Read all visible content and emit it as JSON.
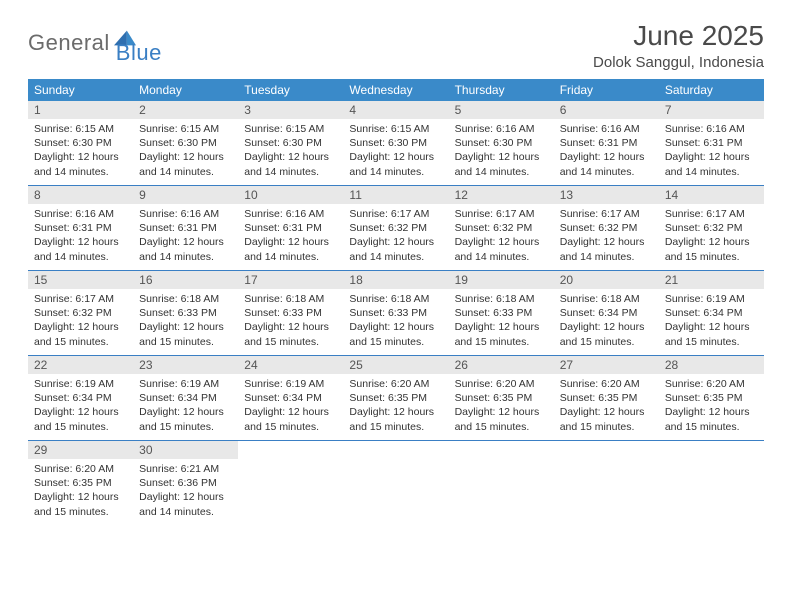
{
  "brand": {
    "word1": "General",
    "word2": "Blue"
  },
  "title": "June 2025",
  "location": "Dolok Sanggul, Indonesia",
  "colors": {
    "header_bar": "#3a8ac9",
    "row_divider": "#3a7fc4",
    "daynum_bg": "#e8e8e8",
    "text": "#333333",
    "brand_gray": "#6b6b6b",
    "brand_blue": "#3a7fc4"
  },
  "dow": [
    "Sunday",
    "Monday",
    "Tuesday",
    "Wednesday",
    "Thursday",
    "Friday",
    "Saturday"
  ],
  "days": [
    {
      "n": 1,
      "sr": "6:15 AM",
      "ss": "6:30 PM",
      "dl": "12 hours and 14 minutes."
    },
    {
      "n": 2,
      "sr": "6:15 AM",
      "ss": "6:30 PM",
      "dl": "12 hours and 14 minutes."
    },
    {
      "n": 3,
      "sr": "6:15 AM",
      "ss": "6:30 PM",
      "dl": "12 hours and 14 minutes."
    },
    {
      "n": 4,
      "sr": "6:15 AM",
      "ss": "6:30 PM",
      "dl": "12 hours and 14 minutes."
    },
    {
      "n": 5,
      "sr": "6:16 AM",
      "ss": "6:30 PM",
      "dl": "12 hours and 14 minutes."
    },
    {
      "n": 6,
      "sr": "6:16 AM",
      "ss": "6:31 PM",
      "dl": "12 hours and 14 minutes."
    },
    {
      "n": 7,
      "sr": "6:16 AM",
      "ss": "6:31 PM",
      "dl": "12 hours and 14 minutes."
    },
    {
      "n": 8,
      "sr": "6:16 AM",
      "ss": "6:31 PM",
      "dl": "12 hours and 14 minutes."
    },
    {
      "n": 9,
      "sr": "6:16 AM",
      "ss": "6:31 PM",
      "dl": "12 hours and 14 minutes."
    },
    {
      "n": 10,
      "sr": "6:16 AM",
      "ss": "6:31 PM",
      "dl": "12 hours and 14 minutes."
    },
    {
      "n": 11,
      "sr": "6:17 AM",
      "ss": "6:32 PM",
      "dl": "12 hours and 14 minutes."
    },
    {
      "n": 12,
      "sr": "6:17 AM",
      "ss": "6:32 PM",
      "dl": "12 hours and 14 minutes."
    },
    {
      "n": 13,
      "sr": "6:17 AM",
      "ss": "6:32 PM",
      "dl": "12 hours and 14 minutes."
    },
    {
      "n": 14,
      "sr": "6:17 AM",
      "ss": "6:32 PM",
      "dl": "12 hours and 15 minutes."
    },
    {
      "n": 15,
      "sr": "6:17 AM",
      "ss": "6:32 PM",
      "dl": "12 hours and 15 minutes."
    },
    {
      "n": 16,
      "sr": "6:18 AM",
      "ss": "6:33 PM",
      "dl": "12 hours and 15 minutes."
    },
    {
      "n": 17,
      "sr": "6:18 AM",
      "ss": "6:33 PM",
      "dl": "12 hours and 15 minutes."
    },
    {
      "n": 18,
      "sr": "6:18 AM",
      "ss": "6:33 PM",
      "dl": "12 hours and 15 minutes."
    },
    {
      "n": 19,
      "sr": "6:18 AM",
      "ss": "6:33 PM",
      "dl": "12 hours and 15 minutes."
    },
    {
      "n": 20,
      "sr": "6:18 AM",
      "ss": "6:34 PM",
      "dl": "12 hours and 15 minutes."
    },
    {
      "n": 21,
      "sr": "6:19 AM",
      "ss": "6:34 PM",
      "dl": "12 hours and 15 minutes."
    },
    {
      "n": 22,
      "sr": "6:19 AM",
      "ss": "6:34 PM",
      "dl": "12 hours and 15 minutes."
    },
    {
      "n": 23,
      "sr": "6:19 AM",
      "ss": "6:34 PM",
      "dl": "12 hours and 15 minutes."
    },
    {
      "n": 24,
      "sr": "6:19 AM",
      "ss": "6:34 PM",
      "dl": "12 hours and 15 minutes."
    },
    {
      "n": 25,
      "sr": "6:20 AM",
      "ss": "6:35 PM",
      "dl": "12 hours and 15 minutes."
    },
    {
      "n": 26,
      "sr": "6:20 AM",
      "ss": "6:35 PM",
      "dl": "12 hours and 15 minutes."
    },
    {
      "n": 27,
      "sr": "6:20 AM",
      "ss": "6:35 PM",
      "dl": "12 hours and 15 minutes."
    },
    {
      "n": 28,
      "sr": "6:20 AM",
      "ss": "6:35 PM",
      "dl": "12 hours and 15 minutes."
    },
    {
      "n": 29,
      "sr": "6:20 AM",
      "ss": "6:35 PM",
      "dl": "12 hours and 15 minutes."
    },
    {
      "n": 30,
      "sr": "6:21 AM",
      "ss": "6:36 PM",
      "dl": "12 hours and 14 minutes."
    }
  ],
  "labels": {
    "sunrise": "Sunrise:",
    "sunset": "Sunset:",
    "daylight": "Daylight:"
  },
  "layout": {
    "first_dow_index": 0,
    "weeks": 5,
    "cols": 7
  }
}
